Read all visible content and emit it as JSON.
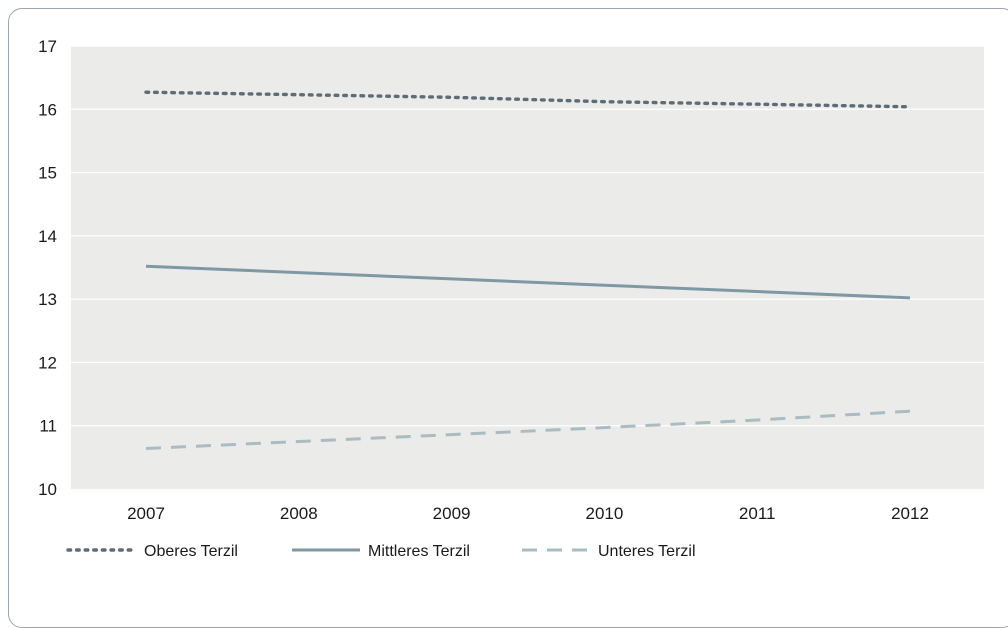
{
  "chart_data": {
    "type": "line",
    "x": [
      "2007",
      "2008",
      "2009",
      "2010",
      "2011",
      "2012"
    ],
    "ylim": [
      10,
      17
    ],
    "yticks": [
      10,
      11,
      12,
      13,
      14,
      15,
      16,
      17
    ],
    "grid": true,
    "legend_position": "bottom-left",
    "series": [
      {
        "name": "Oberes Terzil",
        "values": [
          16.27,
          16.23,
          16.19,
          16.12,
          16.08,
          16.04
        ],
        "color": "#5d6c77",
        "style": "dotted"
      },
      {
        "name": "Mittleres Terzil",
        "values": [
          13.52,
          13.42,
          13.32,
          13.22,
          13.12,
          13.02
        ],
        "color": "#7f99a4",
        "style": "solid"
      },
      {
        "name": "Unteres Terzil",
        "values": [
          10.64,
          10.75,
          10.86,
          10.97,
          11.09,
          11.23
        ],
        "color": "#a9bcc4",
        "style": "dashed"
      }
    ],
    "colors": {
      "plot_background": "#ebebea",
      "grid": "#ffffff",
      "frame_border": "#9aa6ab"
    }
  }
}
